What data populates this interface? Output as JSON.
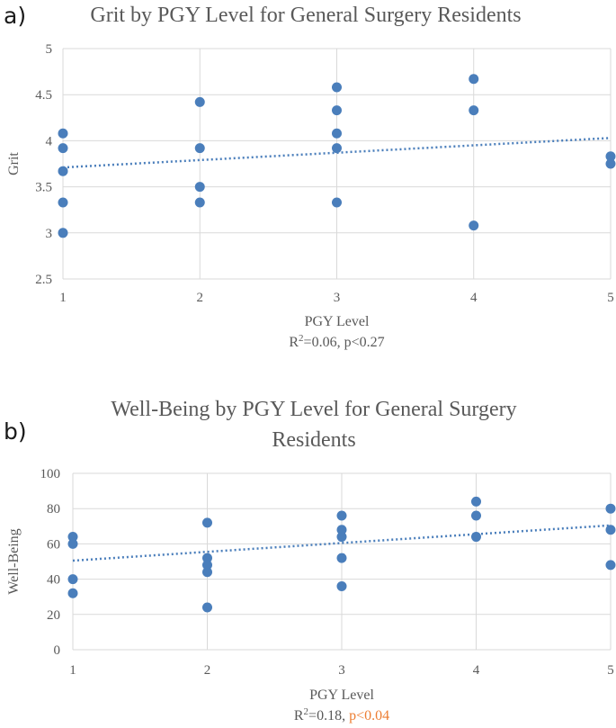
{
  "chart_data": [
    {
      "type": "scatter",
      "panel_label": "a)",
      "title_lines": [
        "Grit by PGY Level for General Surgery Residents"
      ],
      "xlabel": "PGY Level",
      "ylabel": "Grit",
      "stat_prefix": "R",
      "stat_sup": "2",
      "stat_value": "=0.06, ",
      "stat_p": "p<0.27",
      "stat_p_color": "#595959",
      "xlim": [
        1,
        5
      ],
      "ylim": [
        2.5,
        5
      ],
      "xticks": [
        1,
        2,
        3,
        4,
        5
      ],
      "yticks": [
        2.5,
        3,
        3.5,
        4,
        4.5,
        5
      ],
      "ytick_labels": [
        "2.5",
        "3",
        "3.5",
        "4",
        "4.5",
        "5"
      ],
      "points": [
        [
          1,
          4.08
        ],
        [
          1,
          3.92
        ],
        [
          1,
          3.67
        ],
        [
          1,
          3.33
        ],
        [
          1,
          3.0
        ],
        [
          2,
          4.42
        ],
        [
          2,
          3.92
        ],
        [
          2,
          3.5
        ],
        [
          2,
          3.33
        ],
        [
          3,
          4.58
        ],
        [
          3,
          4.33
        ],
        [
          3,
          4.08
        ],
        [
          3,
          3.92
        ],
        [
          3,
          3.33
        ],
        [
          4,
          4.67
        ],
        [
          4,
          4.33
        ],
        [
          4,
          3.08
        ],
        [
          5,
          3.83
        ],
        [
          5,
          3.75
        ]
      ],
      "trendline": {
        "x": [
          1,
          5
        ],
        "y": [
          3.71,
          4.03
        ]
      },
      "point_color": "#4a7ebb"
    },
    {
      "type": "scatter",
      "panel_label": "b)",
      "title_lines": [
        "Well-Being by PGY Level for General Surgery",
        "Residents"
      ],
      "xlabel": "PGY Level",
      "ylabel": "Well-Being",
      "stat_prefix": "R",
      "stat_sup": "2",
      "stat_value": "=0.18, ",
      "stat_p": "p<0.04",
      "stat_p_color": "#ed7d31",
      "xlim": [
        1,
        5
      ],
      "ylim": [
        0,
        100
      ],
      "xticks": [
        1,
        2,
        3,
        4,
        5
      ],
      "yticks": [
        0,
        20,
        40,
        60,
        80,
        100
      ],
      "ytick_labels": [
        "0",
        "20",
        "40",
        "60",
        "80",
        "100"
      ],
      "points": [
        [
          1,
          64
        ],
        [
          1,
          60
        ],
        [
          1,
          40
        ],
        [
          1,
          32
        ],
        [
          2,
          72
        ],
        [
          2,
          52
        ],
        [
          2,
          48
        ],
        [
          2,
          44
        ],
        [
          2,
          24
        ],
        [
          3,
          76
        ],
        [
          3,
          68
        ],
        [
          3,
          64
        ],
        [
          3,
          52
        ],
        [
          3,
          36
        ],
        [
          4,
          84
        ],
        [
          4,
          76
        ],
        [
          4,
          64
        ],
        [
          5,
          80
        ],
        [
          5,
          68
        ],
        [
          5,
          48
        ]
      ],
      "trendline": {
        "x": [
          1,
          5
        ],
        "y": [
          50.5,
          70.5
        ]
      },
      "point_color": "#4a7ebb"
    }
  ]
}
